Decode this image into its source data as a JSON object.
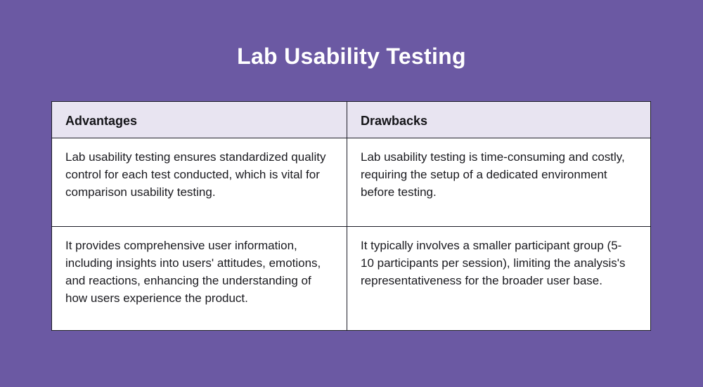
{
  "page": {
    "title": "Lab Usability Testing",
    "background_color": "#6b59a3",
    "title_color": "#ffffff"
  },
  "table": {
    "header_background": "#e8e4f1",
    "cell_background": "#ffffff",
    "border_color": "#1d1d28",
    "headers": [
      "Advantages",
      "Drawbacks"
    ],
    "rows": [
      [
        "Lab usability testing ensures standardized quality control for each test conducted, which is vital for comparison usability testing.",
        "Lab usability testing is time-consuming and costly, requiring the setup of a dedicated environment before testing."
      ],
      [
        "It provides comprehensive user information, including insights into users' attitudes, emotions, and reactions, enhancing the understanding of how users experience the product.",
        "It typically involves a smaller participant group (5-10 participants per session), limiting the analysis's representativeness for the broader user base."
      ]
    ]
  }
}
